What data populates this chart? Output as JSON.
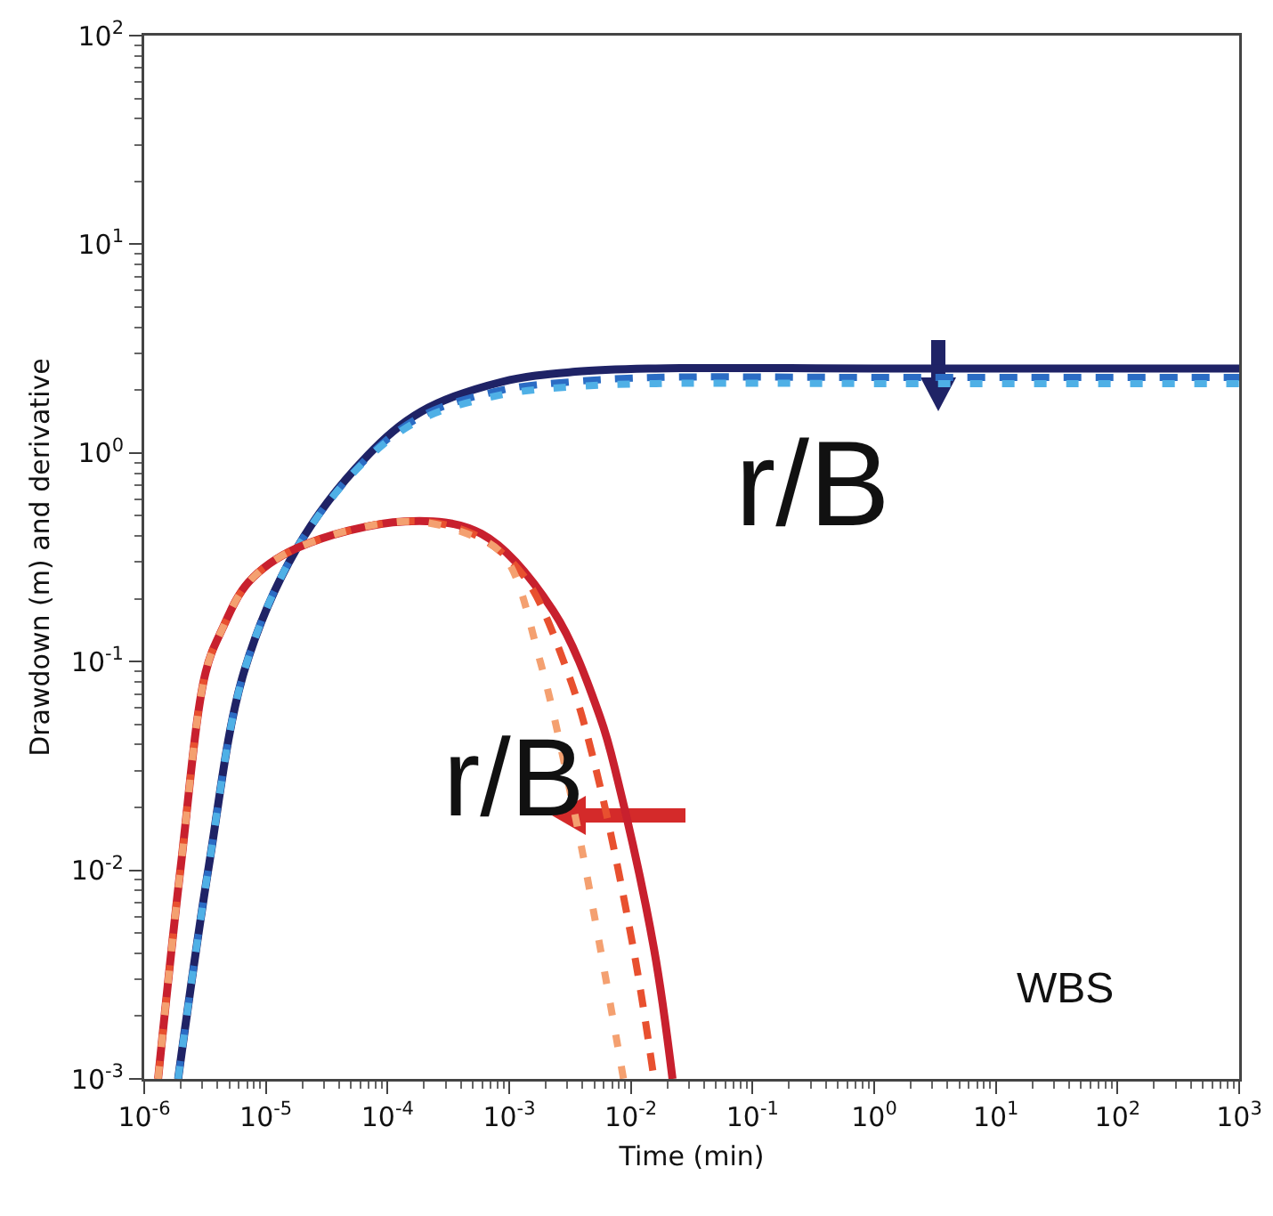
{
  "chart_data": {
    "type": "line",
    "xlabel": "Time (min)",
    "ylabel": "Drawdown (m) and derivative",
    "log": "xy",
    "grid": false,
    "marker": "none",
    "xlim": [
      1e-06,
      1000
    ],
    "ylim": [
      0.001,
      100
    ],
    "xticks": [
      {
        "value": 1e-06,
        "label": "10$^{-6}$"
      },
      {
        "value": 1e-05,
        "label": "10$^{-5}$"
      },
      {
        "value": 0.0001,
        "label": "10$^{-4}$"
      },
      {
        "value": 0.001,
        "label": "10$^{-3}$"
      },
      {
        "value": 0.01,
        "label": "10$^{-2}$"
      },
      {
        "value": 0.1,
        "label": "10$^{-1}$"
      },
      {
        "value": 1,
        "label": "10$^{0}$"
      },
      {
        "value": 10,
        "label": "10$^{1}$"
      },
      {
        "value": 100,
        "label": "10$^{2}$"
      },
      {
        "value": 1000,
        "label": "10$^{3}$"
      }
    ],
    "yticks": [
      {
        "value": 0.001,
        "label": "10$^{-3}$"
      },
      {
        "value": 0.01,
        "label": "10$^{-2}$"
      },
      {
        "value": 0.1,
        "label": "10$^{-1}$"
      },
      {
        "value": 1,
        "label": "10$^{0}$"
      },
      {
        "value": 10,
        "label": "10$^{1}$"
      },
      {
        "value": 100,
        "label": "10$^{2}$"
      }
    ],
    "series": [
      {
        "color": "#1f2366",
        "line_style": "solid",
        "x": [
          1.9e-06,
          3.4e-06,
          6.6e-06,
          1.8e-05,
          6.6e-05,
          0.00019,
          0.00087,
          0.0035,
          0.016,
          1,
          1000
        ],
        "values": [
          0.001,
          0.0105,
          0.089,
          0.35,
          0.95,
          1.58,
          2.19,
          2.45,
          2.54,
          2.54,
          2.54
        ]
      },
      {
        "color": "#2b6cc4",
        "line_style": "dashed",
        "x": [
          1.9e-06,
          3.4e-06,
          6.6e-06,
          1.8e-05,
          6.6e-05,
          0.00019,
          0.00087,
          0.0035,
          0.016,
          1,
          1000
        ],
        "values": [
          0.001,
          0.0105,
          0.089,
          0.35,
          0.93,
          1.5,
          2.0,
          2.2,
          2.3,
          2.3,
          2.3
        ]
      },
      {
        "color": "#4fb0e6",
        "line_style": "dashed",
        "x": [
          1.9e-06,
          3.4e-06,
          6.6e-06,
          1.8e-05,
          6.6e-05,
          0.00019,
          0.00087,
          0.0035,
          0.016,
          1,
          1000
        ],
        "values": [
          0.001,
          0.0105,
          0.089,
          0.35,
          0.92,
          1.45,
          1.9,
          2.08,
          2.15,
          2.15,
          2.15
        ]
      },
      {
        "color": "#c8202e",
        "line_style": "solid",
        "x": [
          1.3e-06,
          2e-06,
          3.2e-06,
          4.3e-06,
          7.2e-06,
          1.8e-05,
          0.00014,
          0.00059,
          0.0023,
          0.0056,
          0.0078,
          0.0155,
          0.022
        ],
        "values": [
          0.001,
          0.0105,
          0.089,
          0.14,
          0.24,
          0.35,
          0.47,
          0.41,
          0.175,
          0.054,
          0.027,
          0.0042,
          0.001
        ]
      },
      {
        "color": "#e8502f",
        "line_style": "dashed",
        "x": [
          1.3e-06,
          2e-06,
          3.2e-06,
          4.3e-06,
          7.2e-06,
          1.8e-05,
          0.00014,
          0.0005,
          0.0013,
          0.003,
          0.0052,
          0.0105,
          0.0155
        ],
        "values": [
          0.001,
          0.0105,
          0.089,
          0.14,
          0.24,
          0.35,
          0.47,
          0.41,
          0.26,
          0.09,
          0.03,
          0.0042,
          0.001
        ]
      },
      {
        "color": "#f4a070",
        "line_style": "dashed",
        "x": [
          1.3e-06,
          2e-06,
          3.2e-06,
          4.3e-06,
          7.2e-06,
          1.8e-05,
          0.00014,
          0.00045,
          0.00091,
          0.0018,
          0.0035,
          0.0055,
          0.0087
        ],
        "values": [
          0.001,
          0.0105,
          0.089,
          0.14,
          0.24,
          0.35,
          0.47,
          0.41,
          0.32,
          0.1,
          0.018,
          0.0045,
          0.001
        ]
      }
    ],
    "annotations": [
      "r/B",
      "r/B",
      "WBS"
    ]
  }
}
